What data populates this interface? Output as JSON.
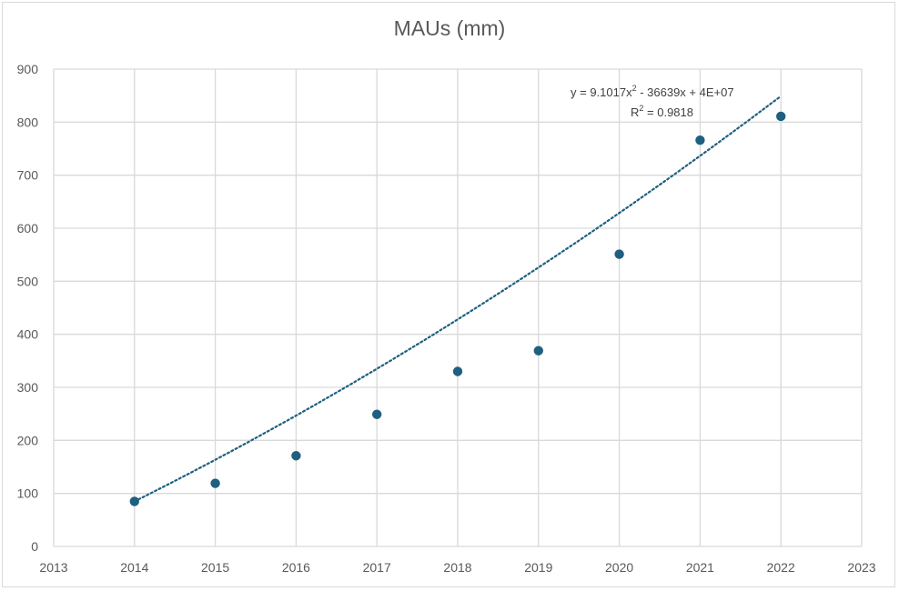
{
  "chart_data": {
    "type": "scatter",
    "title": "MAUs (mm)",
    "xlabel": "",
    "ylabel": "",
    "xlim": [
      2013,
      2023
    ],
    "ylim": [
      0,
      900
    ],
    "xticks": [
      2013,
      2014,
      2015,
      2016,
      2017,
      2018,
      2019,
      2020,
      2021,
      2022,
      2023
    ],
    "yticks": [
      0,
      100,
      200,
      300,
      400,
      500,
      600,
      700,
      800,
      900
    ],
    "grid": true,
    "legend": "none",
    "series": [
      {
        "x": [
          2014,
          2015,
          2016,
          2017,
          2018,
          2019,
          2020,
          2021,
          2022
        ],
        "y": [
          85,
          119,
          171,
          249,
          330,
          369,
          551,
          766,
          811
        ]
      }
    ],
    "trendline": {
      "type": "polynomial-2",
      "style": "dotted",
      "x_range": [
        2014,
        2022
      ],
      "y_start": 85,
      "y_mid": 428,
      "y_end": 849,
      "equation": "y = 9.1017x",
      "equation_exp": "2",
      "equation_rest": " - 36639x + 4E+07",
      "r2_label": "R",
      "r2_exp": "2",
      "r2_value": " = 0.9818"
    },
    "colors": {
      "marker": "#1f5f7f",
      "trendline": "#1f5f7f",
      "grid": "#d9d9d9",
      "text": "#595959"
    }
  }
}
